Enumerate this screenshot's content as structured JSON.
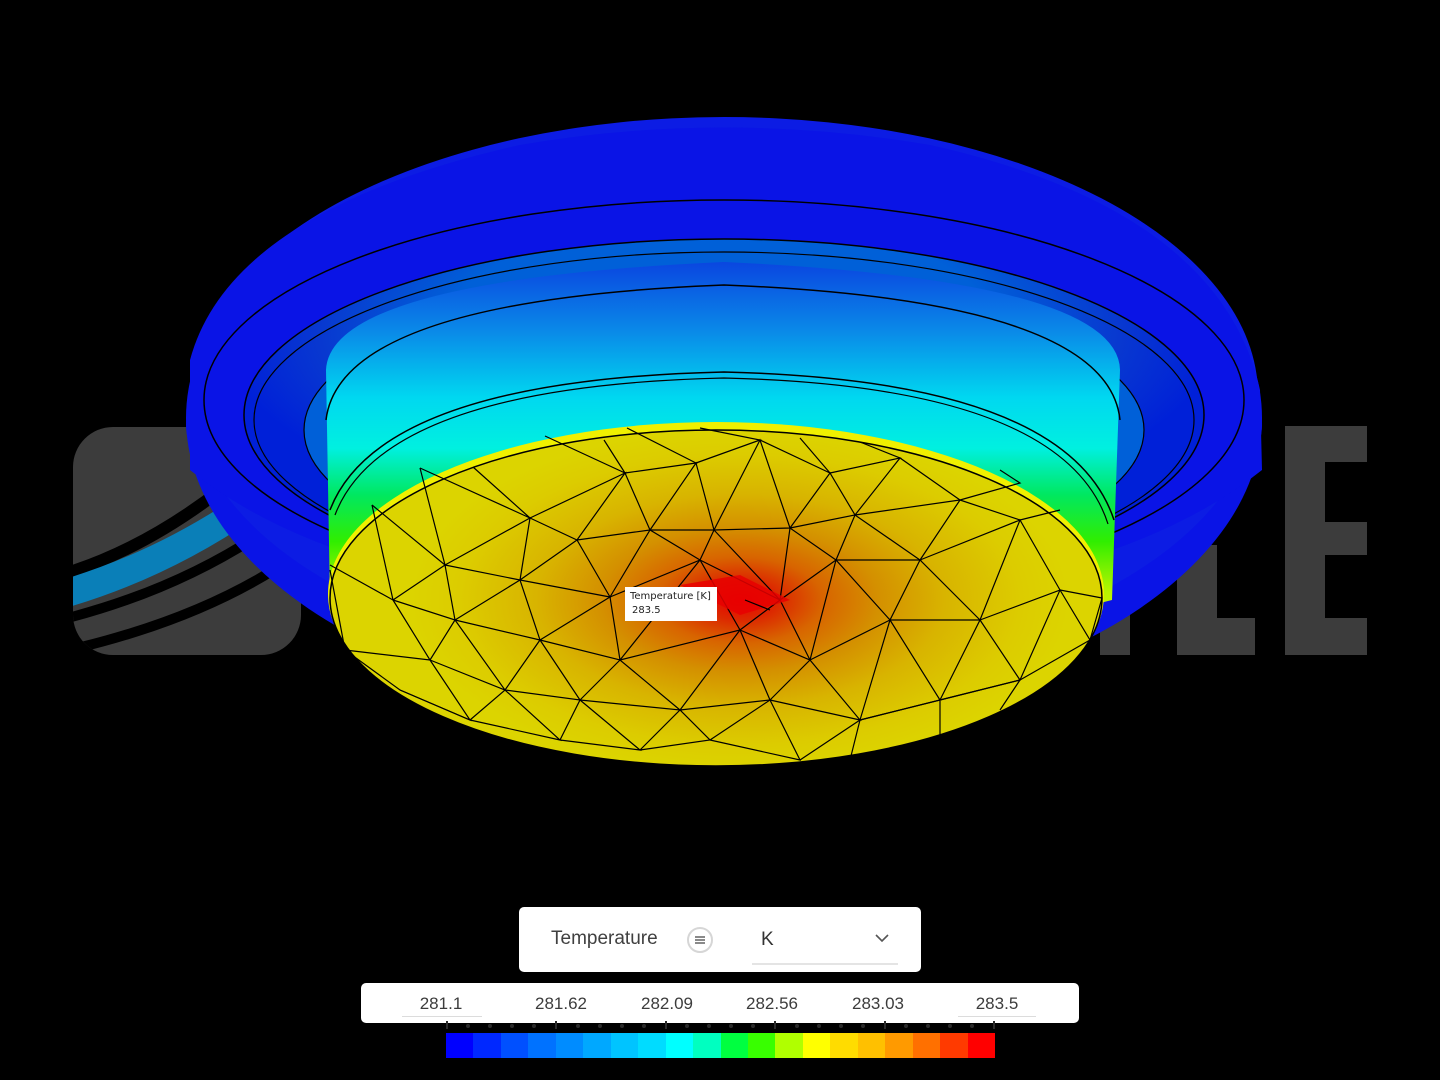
{
  "viewport": {
    "background": "#000000",
    "watermark": {
      "text": "SIMSCALE",
      "visible_letters": [
        "S",
        "L",
        "E"
      ],
      "color": "#3c3c3c",
      "accent_color": "#0a7fb8"
    }
  },
  "model": {
    "type": "temperature-contour-mesh",
    "hotspot_color": "#ff0000",
    "rim_color": "#0a14e6"
  },
  "tooltip": {
    "label": "Temperature [K]",
    "value": "283.5"
  },
  "legend": {
    "quantity": "Temperature",
    "options_icon": "list-icon",
    "unit": {
      "selected": "K",
      "icon": "chevron-down-icon"
    },
    "ticks": [
      {
        "label": "281.1",
        "editable": true
      },
      {
        "label": "281.62",
        "editable": false
      },
      {
        "label": "282.09",
        "editable": false
      },
      {
        "label": "282.56",
        "editable": false
      },
      {
        "label": "283.03",
        "editable": false
      },
      {
        "label": "283.5",
        "editable": true
      }
    ],
    "min": 281.1,
    "max": 283.5,
    "colors": [
      "#0000ff",
      "#0028ff",
      "#0050ff",
      "#0072ff",
      "#008cff",
      "#00a8ff",
      "#00c4ff",
      "#00dcff",
      "#00ffff",
      "#00ffc0",
      "#00ff40",
      "#38ff00",
      "#b0ff00",
      "#ffff00",
      "#ffdc00",
      "#ffc000",
      "#ff9a00",
      "#ff7000",
      "#ff3a00",
      "#ff0000"
    ]
  }
}
